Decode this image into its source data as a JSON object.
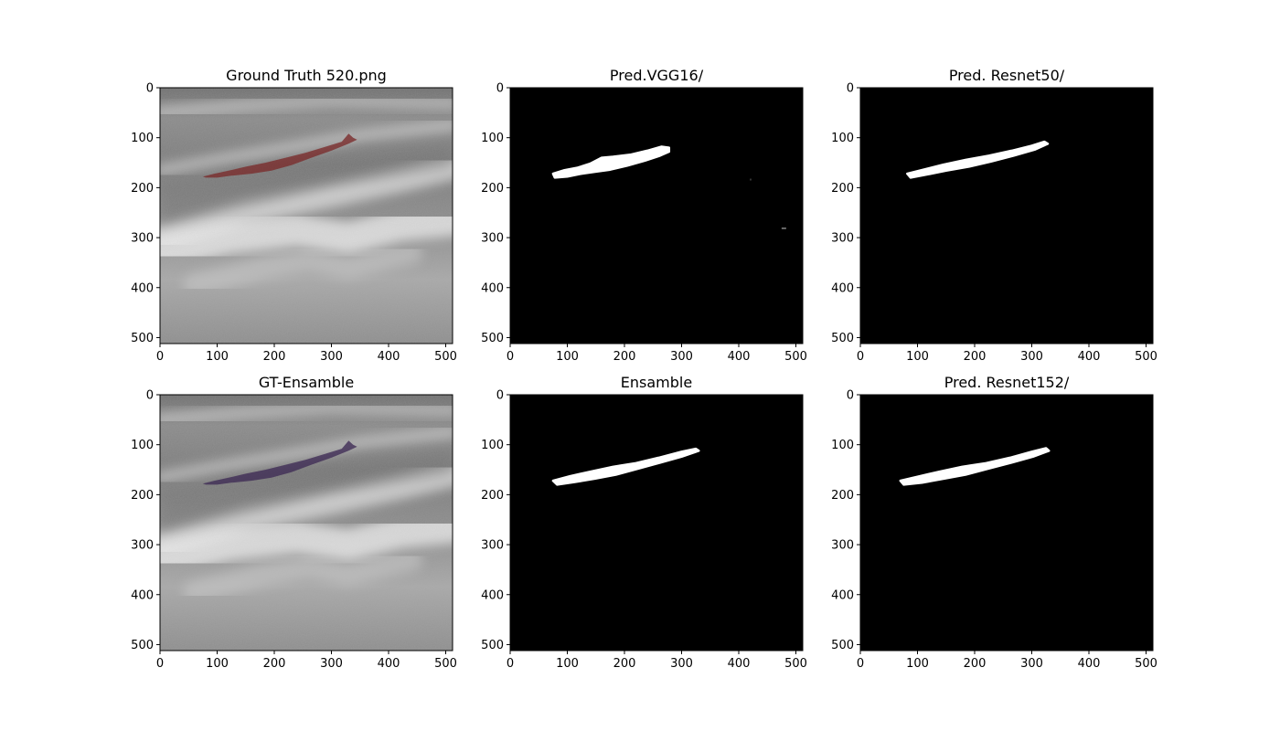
{
  "figure": {
    "background": "#ffffff"
  },
  "chart_data": [
    {
      "type": "image",
      "title": "Ground Truth 520.png",
      "content": "ultrasound-overlay",
      "overlay_color": "#7a2a2a",
      "xlim": [
        0,
        512
      ],
      "ylim": [
        512,
        0
      ],
      "xticks": [
        0,
        100,
        200,
        300,
        400,
        500
      ],
      "yticks": [
        0,
        100,
        200,
        300,
        400,
        500
      ]
    },
    {
      "type": "image",
      "title": "Pred.VGG16/",
      "content": "binary-mask",
      "xlim": [
        0,
        512
      ],
      "ylim": [
        512,
        0
      ],
      "xticks": [
        0,
        100,
        200,
        300,
        400,
        500
      ],
      "yticks": [
        0,
        100,
        200,
        300,
        400,
        500
      ]
    },
    {
      "type": "image",
      "title": "Pred. Resnet50/",
      "content": "binary-mask",
      "xlim": [
        0,
        512
      ],
      "ylim": [
        512,
        0
      ],
      "xticks": [
        0,
        100,
        200,
        300,
        400,
        500
      ],
      "yticks": [
        0,
        100,
        200,
        300,
        400,
        500
      ]
    },
    {
      "type": "image",
      "title": "GT-Ensamble",
      "content": "ultrasound-overlay",
      "overlay_color": "#3d2a55",
      "xlim": [
        0,
        512
      ],
      "ylim": [
        512,
        0
      ],
      "xticks": [
        0,
        100,
        200,
        300,
        400,
        500
      ],
      "yticks": [
        0,
        100,
        200,
        300,
        400,
        500
      ]
    },
    {
      "type": "image",
      "title": "Ensamble",
      "content": "binary-mask",
      "xlim": [
        0,
        512
      ],
      "ylim": [
        512,
        0
      ],
      "xticks": [
        0,
        100,
        200,
        300,
        400,
        500
      ],
      "yticks": [
        0,
        100,
        200,
        300,
        400,
        500
      ]
    },
    {
      "type": "image",
      "title": "Pred. Resnet152/",
      "content": "binary-mask",
      "xlim": [
        0,
        512
      ],
      "ylim": [
        512,
        0
      ],
      "xticks": [
        0,
        100,
        200,
        300,
        400,
        500
      ],
      "yticks": [
        0,
        100,
        200,
        300,
        400,
        500
      ]
    }
  ]
}
